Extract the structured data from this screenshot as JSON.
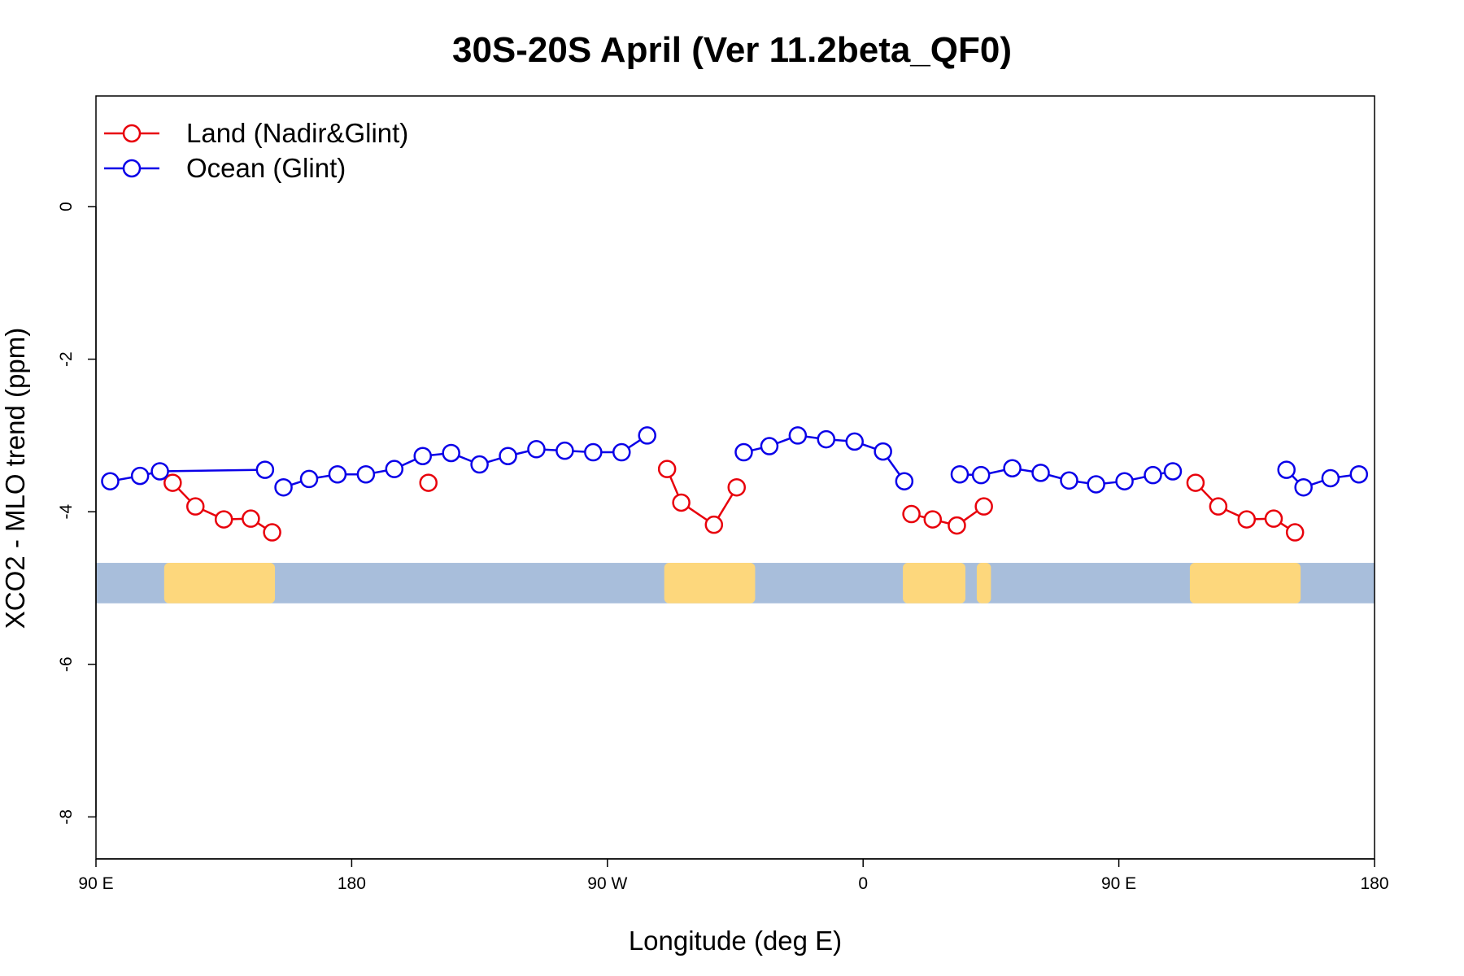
{
  "chart_data": {
    "type": "line",
    "title": "30S-20S April (Ver 11.2beta_QF0)",
    "xlabel": "Longitude (deg E)",
    "ylabel": "XCO2 - MLO trend (ppm)",
    "xlim": [
      90,
      540
    ],
    "ylim": [
      -8.55,
      1.45
    ],
    "x_ticks": [
      {
        "value": 90,
        "label": "90 E"
      },
      {
        "value": 180,
        "label": "180"
      },
      {
        "value": 270,
        "label": "90 W"
      },
      {
        "value": 360,
        "label": "0"
      },
      {
        "value": 450,
        "label": "90 E"
      },
      {
        "value": 540,
        "label": "180"
      }
    ],
    "y_ticks": [
      {
        "value": 0,
        "label": "0"
      },
      {
        "value": -2,
        "label": "-2"
      },
      {
        "value": -4,
        "label": "-4"
      },
      {
        "value": -6,
        "label": "-6"
      },
      {
        "value": -8,
        "label": "-8"
      }
    ],
    "grid": false,
    "legend_position": "top-left",
    "map_strip": {
      "y_range": [
        -5.2,
        -4.67
      ],
      "ocean_color": "#a8bedb",
      "land_color": "#fdd77c",
      "land_segments": [
        [
          114,
          153
        ],
        [
          290,
          322
        ],
        [
          374,
          396
        ],
        [
          400,
          405
        ],
        [
          475,
          514
        ]
      ]
    },
    "series": [
      {
        "name": "Land (Nadir&Glint)",
        "color": "#e8000b",
        "segments": [
          [
            [
              117,
              -3.62
            ],
            [
              125,
              -3.93
            ],
            [
              135,
              -4.1
            ],
            [
              144.5,
              -4.09
            ],
            [
              152,
              -4.27
            ]
          ],
          [
            [
              291,
              -3.44
            ],
            [
              296,
              -3.88
            ],
            [
              307.5,
              -4.17
            ],
            [
              315.5,
              -3.68
            ]
          ],
          [
            [
              377,
              -4.03
            ],
            [
              384.5,
              -4.1
            ],
            [
              393,
              -4.18
            ],
            [
              402.5,
              -3.93
            ]
          ],
          [
            [
              207,
              -3.62
            ]
          ],
          [
            [
              477,
              -3.62
            ],
            [
              485,
              -3.93
            ],
            [
              495,
              -4.1
            ],
            [
              504.5,
              -4.09
            ],
            [
              512,
              -4.27
            ]
          ]
        ]
      },
      {
        "name": "Ocean (Glint)",
        "color": "#0a00e8",
        "segments": [
          [
            [
              95,
              -3.6
            ],
            [
              105.5,
              -3.53
            ],
            [
              112.5,
              -3.47
            ],
            [
              149.5,
              -3.45
            ]
          ],
          [
            [
              156,
              -3.68
            ],
            [
              165,
              -3.57
            ],
            [
              175,
              -3.51
            ],
            [
              185,
              -3.51
            ],
            [
              195,
              -3.44
            ],
            [
              205,
              -3.27
            ],
            [
              215,
              -3.23
            ],
            [
              225,
              -3.38
            ],
            [
              235,
              -3.27
            ],
            [
              245,
              -3.18
            ],
            [
              255,
              -3.2
            ],
            [
              265,
              -3.22
            ],
            [
              275,
              -3.22
            ],
            [
              284,
              -3.0
            ]
          ],
          [
            [
              318,
              -3.22
            ],
            [
              327,
              -3.14
            ],
            [
              337,
              -3.0
            ],
            [
              347,
              -3.05
            ],
            [
              357,
              -3.08
            ],
            [
              367,
              -3.21
            ],
            [
              374.5,
              -3.6
            ]
          ],
          [
            [
              394,
              -3.51
            ],
            [
              401.5,
              -3.52
            ],
            [
              412.5,
              -3.43
            ],
            [
              422.5,
              -3.49
            ],
            [
              432.5,
              -3.59
            ],
            [
              442,
              -3.64
            ],
            [
              452,
              -3.6
            ],
            [
              462,
              -3.52
            ],
            [
              469,
              -3.47
            ]
          ],
          [
            [
              509,
              -3.45
            ],
            [
              515,
              -3.68
            ],
            [
              524.5,
              -3.56
            ],
            [
              534.5,
              -3.51
            ]
          ]
        ]
      }
    ]
  }
}
